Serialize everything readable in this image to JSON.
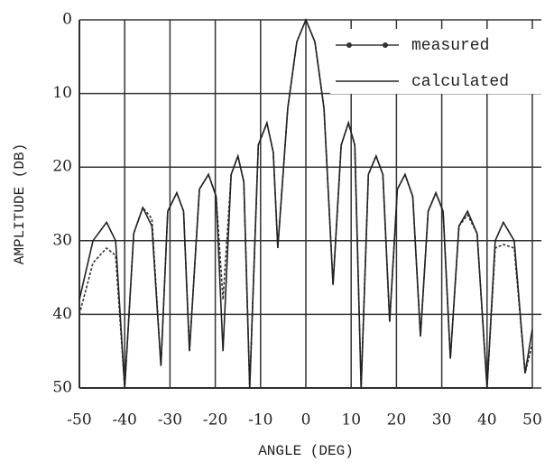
{
  "chart_data": {
    "type": "line",
    "x_label": "ANGLE (DEG)",
    "y_label": "AMPLITUDE (DB)",
    "x": [
      -50,
      -47,
      -44,
      -42,
      -40,
      -38,
      -36,
      -34,
      -32,
      -30.5,
      -28.5,
      -27,
      -25.7,
      -23.5,
      -21.5,
      -19.8,
      -18.3,
      -16.5,
      -15,
      -13.7,
      -12.4,
      -10.5,
      -8.6,
      -7.2,
      -6.2,
      -4,
      -2,
      0,
      2,
      4,
      6,
      7.8,
      9.4,
      10.8,
      12.2,
      13.8,
      15.5,
      17,
      18.5,
      20.2,
      21.9,
      23.6,
      25.3,
      27,
      28.7,
      30.3,
      31.9,
      33.8,
      35.7,
      37.8,
      40,
      41.8,
      43.6,
      46,
      48.4,
      50
    ],
    "series": [
      {
        "name": "measured",
        "color": "#333333",
        "style": "dashed",
        "values": [
          40,
          33,
          31,
          32,
          50,
          29,
          25.5,
          27,
          47,
          26,
          23.5,
          26,
          45,
          23,
          21,
          24,
          38,
          21,
          18.5,
          22,
          50,
          17,
          14,
          18,
          31,
          12,
          3,
          0,
          3,
          12,
          36,
          17,
          14,
          17,
          50,
          21,
          18.5,
          21,
          41,
          23,
          21,
          24,
          43,
          26,
          23.5,
          26,
          46,
          28,
          26.5,
          29,
          50,
          31,
          30.5,
          31,
          48,
          44
        ]
      },
      {
        "name": "calculated",
        "color": "#222222",
        "style": "solid",
        "values": [
          38,
          30,
          27.5,
          30,
          50,
          29,
          25.5,
          28,
          47,
          26,
          23.5,
          26,
          45,
          23,
          21,
          24,
          45,
          21,
          18.5,
          22,
          50,
          17,
          14,
          18,
          31,
          12,
          3,
          0,
          3,
          12,
          36,
          17,
          14,
          17,
          50,
          21,
          18.5,
          21,
          41,
          23,
          21,
          24,
          43,
          26,
          23.5,
          26,
          46,
          28,
          26,
          29,
          50,
          30,
          27.5,
          30,
          48,
          42
        ]
      }
    ],
    "xlim": [
      -50,
      50
    ],
    "xticks": [
      -50,
      -40,
      -30,
      -20,
      -10,
      0,
      10,
      20,
      30,
      40,
      50
    ],
    "ylim": [
      0,
      50
    ],
    "yticks": [
      0,
      10,
      20,
      30,
      40,
      50
    ],
    "y_inverted": true,
    "grid": true,
    "legend": "upper right"
  }
}
